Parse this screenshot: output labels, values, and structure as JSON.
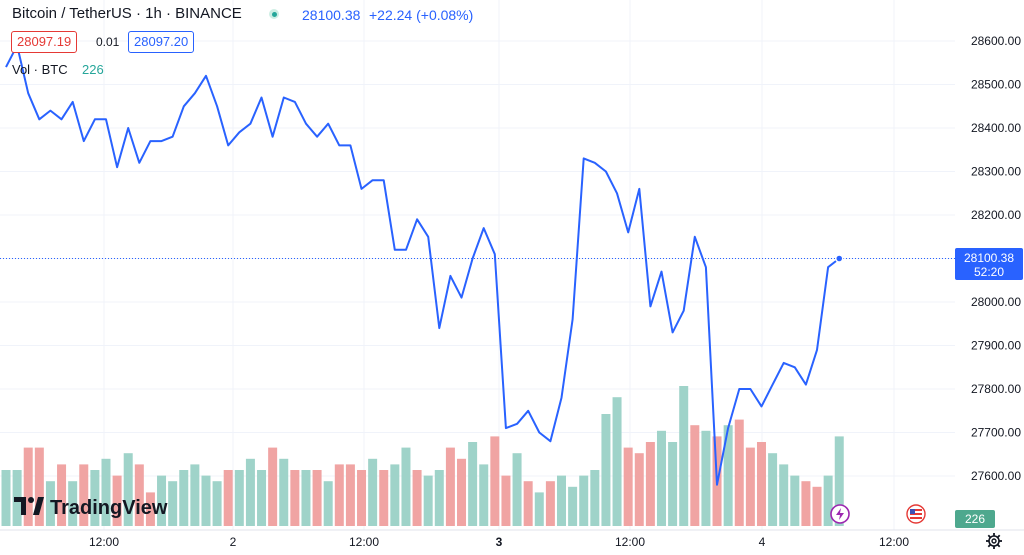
{
  "header": {
    "title": "Bitcoin / TetherUS · 1h · BINANCE",
    "last_price": "28100.38",
    "change": "+22.24 (+0.08%)",
    "bid": "28097.19",
    "spread": "0.01",
    "ask": "28097.20",
    "vol_label": "Vol · BTC",
    "vol_value": "226"
  },
  "price_badge": {
    "price": "28100.38",
    "countdown": "52:20"
  },
  "volume_badge": "226",
  "logo": {
    "text": "TradingView"
  },
  "colors": {
    "line": "#2962ff",
    "vol_up": "#9fd3c9",
    "vol_down": "#f0a4a3",
    "bid": "#e53935",
    "ask": "#2962ff",
    "vol_text": "#26a69a"
  },
  "chart_data": {
    "type": "line",
    "title": "Bitcoin / TetherUS · 1h · BINANCE",
    "ylim": [
      27550,
      28700
    ],
    "y_ticks": [
      "27600.00",
      "27700.00",
      "27800.00",
      "27900.00",
      "28000.00",
      "28100.00",
      "28200.00",
      "28300.00",
      "28400.00",
      "28500.00",
      "28600.00"
    ],
    "x_ticks": [
      "12:00",
      "2",
      "12:00",
      "3",
      "12:00",
      "4",
      "12:00"
    ],
    "series": [
      {
        "values": [
          28540,
          28590,
          28480,
          28420,
          28440,
          28420,
          28460,
          28370,
          28420,
          28420,
          28310,
          28400,
          28320,
          28370,
          28370,
          28380,
          28450,
          28480,
          28520,
          28450,
          28360,
          28390,
          28410,
          28470,
          28380,
          28470,
          28460,
          28410,
          28380,
          28410,
          28360,
          28360,
          28260,
          28280,
          28280,
          28120,
          28120,
          28190,
          28150,
          27940,
          28060,
          28010,
          28100,
          28170,
          28110,
          27710,
          27720,
          27750,
          27700,
          27680,
          27780,
          27960,
          28330,
          28320,
          28300,
          28250,
          28160,
          28260,
          27990,
          28070,
          27930,
          27980,
          28150,
          28080,
          27580,
          27710,
          27800,
          27800,
          27760,
          27810,
          27860,
          27850,
          27810,
          27890,
          28080,
          28100
        ]
      }
    ],
    "volume": {
      "values": [
        10,
        10,
        14,
        14,
        8,
        11,
        8,
        11,
        10,
        12,
        9,
        13,
        11,
        6,
        9,
        8,
        10,
        11,
        9,
        8,
        10,
        10,
        12,
        10,
        14,
        12,
        10,
        10,
        10,
        8,
        11,
        11,
        10,
        12,
        10,
        11,
        14,
        10,
        9,
        10,
        14,
        12,
        15,
        11,
        16,
        9,
        13,
        8,
        6,
        8,
        9,
        7,
        9,
        10,
        20,
        23,
        14,
        13,
        15,
        17,
        15,
        25,
        18,
        17,
        16,
        18,
        19,
        14,
        15,
        13,
        11,
        9,
        8,
        7,
        9,
        16
      ],
      "up": [
        1,
        1,
        0,
        0,
        1,
        0,
        1,
        0,
        1,
        1,
        0,
        1,
        0,
        0,
        1,
        1,
        1,
        1,
        1,
        1,
        0,
        1,
        1,
        1,
        0,
        1,
        0,
        1,
        0,
        1,
        0,
        0,
        0,
        1,
        0,
        1,
        1,
        0,
        1,
        1,
        0,
        0,
        1,
        1,
        0,
        0,
        1,
        0,
        1,
        0,
        1,
        1,
        1,
        1,
        1,
        1,
        0,
        0,
        0,
        1,
        1,
        1,
        0,
        1,
        0,
        1,
        0,
        0,
        0,
        1,
        1,
        1,
        0,
        0,
        1,
        1
      ]
    }
  }
}
